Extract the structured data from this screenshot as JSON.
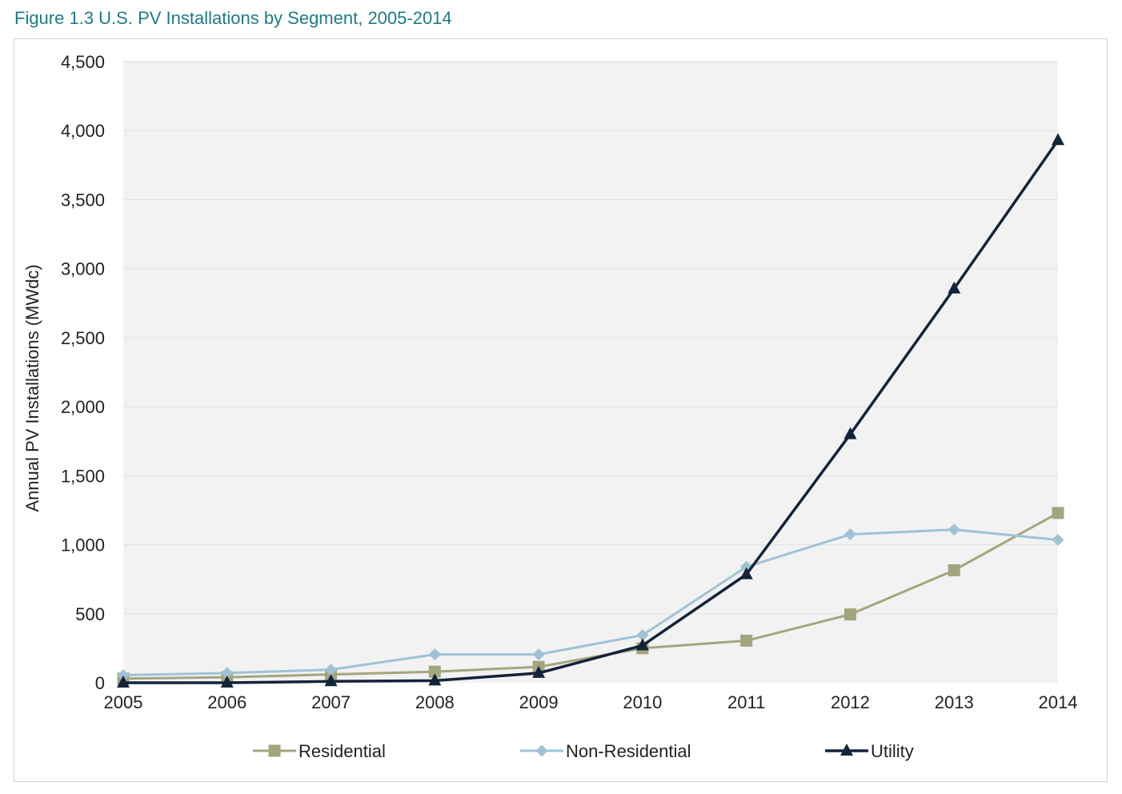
{
  "figure_title": "Figure 1.3  U.S. PV Installations by Segment, 2005-2014",
  "colors": {
    "title": "#1f7a86",
    "plot_background": "#f2f2f2",
    "grid": "#e2e2e2",
    "text": "#222222"
  },
  "chart_data": {
    "type": "line",
    "title": "Figure 1.3  U.S. PV Installations by Segment, 2005-2014",
    "xlabel": "",
    "ylabel": "Annual PV Installations (MWdc)",
    "x": [
      "2005",
      "2006",
      "2007",
      "2008",
      "2009",
      "2010",
      "2011",
      "2012",
      "2013",
      "2014"
    ],
    "ylim": [
      0,
      4500
    ],
    "y_ticks": [
      "0",
      "500",
      "1,000",
      "1,500",
      "2,000",
      "2,500",
      "3,000",
      "3,500",
      "4,000",
      "4,500"
    ],
    "y_tick_values": [
      0,
      500,
      1000,
      1500,
      2000,
      2500,
      3000,
      3500,
      4000,
      4500
    ],
    "grid": true,
    "legend_position": "bottom",
    "series": [
      {
        "name": "Residential",
        "color": "#a3a57e",
        "marker": "square",
        "values": [
          30,
          40,
          60,
          80,
          115,
          250,
          305,
          495,
          815,
          1230
        ]
      },
      {
        "name": "Non-Residential",
        "color": "#9ec3d5",
        "marker": "diamond",
        "values": [
          55,
          70,
          95,
          205,
          205,
          345,
          840,
          1075,
          1110,
          1035
        ]
      },
      {
        "name": "Utility",
        "color": "#12243a",
        "marker": "triangle",
        "values": [
          0,
          0,
          10,
          15,
          70,
          270,
          785,
          1800,
          2855,
          3930
        ]
      }
    ]
  }
}
